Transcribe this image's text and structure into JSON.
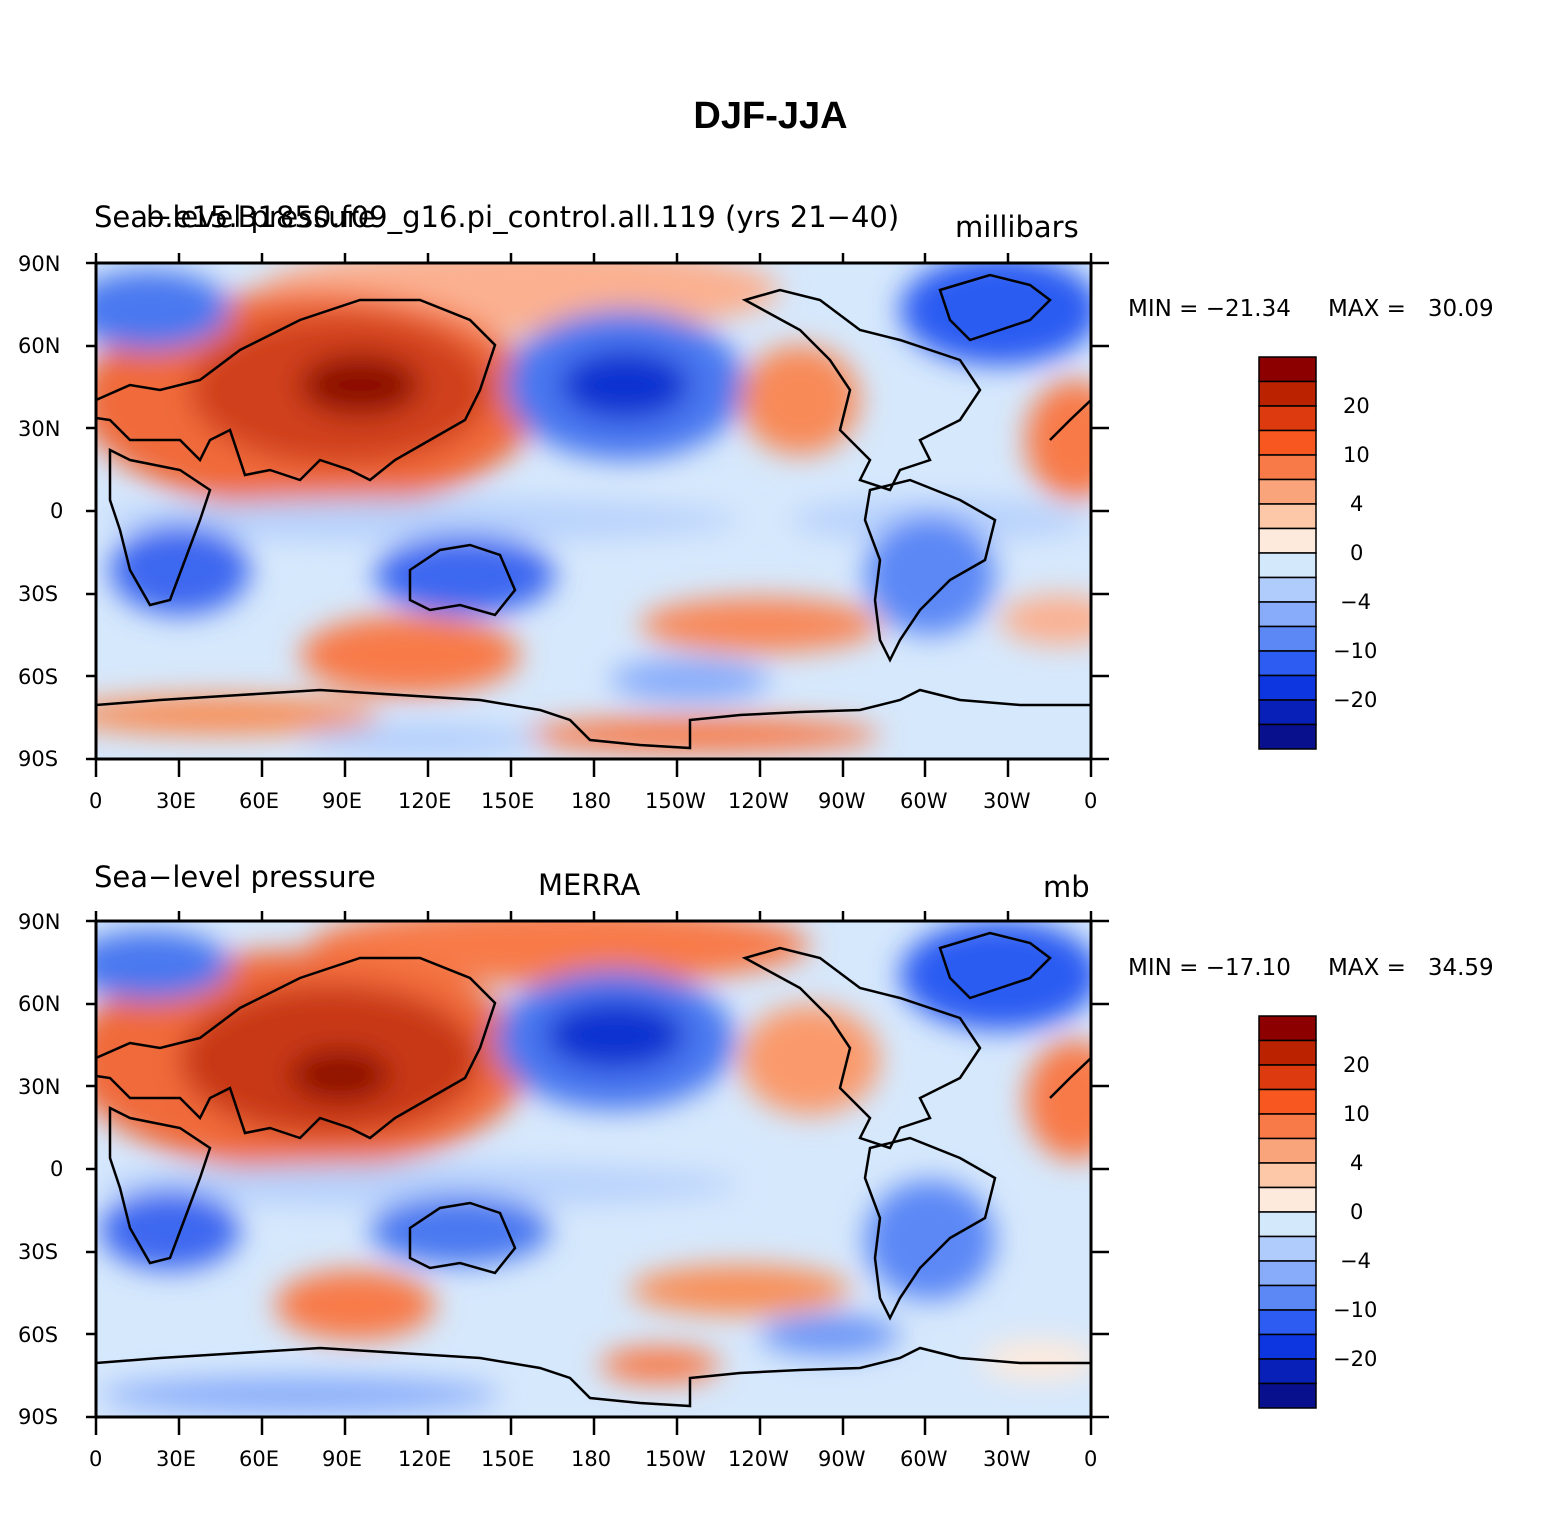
{
  "title": "DJF-JJA",
  "lat_labels": [
    "90N",
    "60N",
    "30N",
    "0",
    "30S",
    "60S",
    "90S"
  ],
  "lon_labels": [
    "0",
    "30E",
    "60E",
    "90E",
    "120E",
    "150E",
    "180",
    "150W",
    "120W",
    "90W",
    "60W",
    "30W",
    "0"
  ],
  "colorbar": {
    "labels": [
      "20",
      "10",
      "4",
      "0",
      "−4",
      "−10",
      "−20"
    ],
    "colors": [
      "#8c0000",
      "#bb2200",
      "#dd3a10",
      "#f85820",
      "#f87a48",
      "#faa47c",
      "#fcc8a8",
      "#feeadc",
      "#d4e8fc",
      "#b0ccfc",
      "#88acfa",
      "#5c88f6",
      "#2c5cf2",
      "#0e36e0",
      "#0820b8",
      "#08108e"
    ]
  },
  "panels": [
    {
      "left_title": "Sea−level pressure",
      "center_title": "b.e15.B1850.f09_g16.pi_control.all.119 (yrs 21−40)",
      "units": "millibars",
      "min_label": "MIN = −21.34",
      "max_label": "MAX =   30.09"
    },
    {
      "left_title": "Sea−level pressure",
      "center_title": "MERRA",
      "units": "mb",
      "min_label": "MIN = −17.10",
      "max_label": "MAX =   34.59"
    }
  ]
}
